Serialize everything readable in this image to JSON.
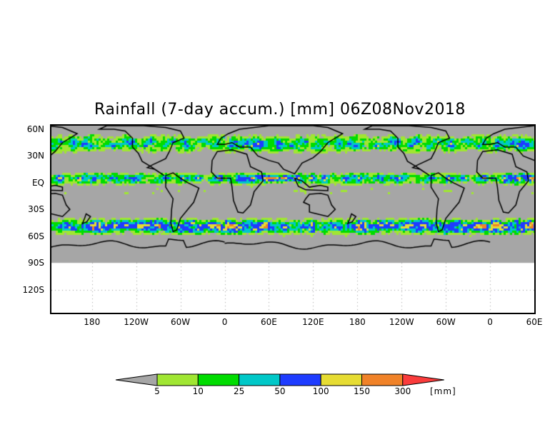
{
  "title": "Rainfall (7-day accum.) [mm] 06Z08Nov2018",
  "lat_labels": [
    {
      "label": "60N",
      "lat": 60
    },
    {
      "label": "30N",
      "lat": 30
    },
    {
      "label": "EQ",
      "lat": 0
    },
    {
      "label": "30S",
      "lat": -30
    },
    {
      "label": "60S",
      "lat": -60
    },
    {
      "label": "90S",
      "lat": -90
    },
    {
      "label": "120S",
      "lat": -120
    }
  ],
  "lon_labels": [
    {
      "label": "180",
      "lon": 180
    },
    {
      "label": "120W",
      "lon": 240
    },
    {
      "label": "60W",
      "lon": 300
    },
    {
      "label": "0",
      "lon": 360
    },
    {
      "label": "60E",
      "lon": 420
    },
    {
      "label": "120E",
      "lon": 480
    },
    {
      "label": "180",
      "lon": 540
    },
    {
      "label": "120W",
      "lon": 600
    },
    {
      "label": "60W",
      "lon": 660
    },
    {
      "label": "0",
      "lon": 720
    },
    {
      "label": "60E",
      "lon": 780
    }
  ],
  "map_extent": {
    "lon_min": 125,
    "lon_max": 780,
    "lat_min": -146,
    "lat_max": 64,
    "data_lat_min": -90
  },
  "colorbar": {
    "levels": [
      "5",
      "10",
      "25",
      "50",
      "100",
      "150",
      "300"
    ],
    "colors": [
      "#a6a6a6",
      "#a0e632",
      "#00dc00",
      "#00c8c8",
      "#1e3cff",
      "#e6dc32",
      "#f08228",
      "#fa3c3c"
    ],
    "unit": "[mm]"
  },
  "no_data_color": "#a6a6a6"
}
